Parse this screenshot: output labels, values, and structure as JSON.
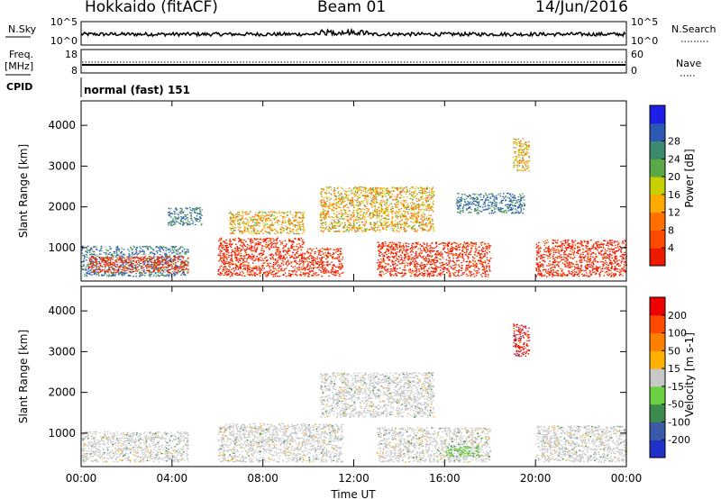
{
  "header": {
    "station": "Hokkaido (fitACF)",
    "beam": "Beam 01",
    "date": "14/Jun/2016"
  },
  "top_panels": {
    "nsky_label": "N.Sky",
    "nsky_ticks": [
      "10^5",
      "10^0"
    ],
    "nsearch_label": "N.Search",
    "nsearch_ticks": [
      "10^5",
      "10^0"
    ],
    "freq_label_1": "Freq.",
    "freq_label_2": "[MHz]",
    "freq_ticks": [
      "18",
      "8"
    ],
    "nave_label": "Nave",
    "nave_ticks": [
      "60",
      "0"
    ],
    "cpid_label": "CPID",
    "cpid_value": "normal (fast) 151"
  },
  "colors": {
    "power": [
      "#1e1ee6",
      "#2d58b4",
      "#3e8a6e",
      "#5ba946",
      "#c8d000",
      "#ffaa00",
      "#ff7000",
      "#ff4a00",
      "#ee1a00"
    ],
    "velocity": [
      "#2030c8",
      "#3b5aa8",
      "#3c8a4c",
      "#6cd040",
      "#c8c8c8",
      "#ffb000",
      "#ff8000",
      "#ff4a00",
      "#ee0000"
    ]
  },
  "chart_data": [
    {
      "type": "heatmap",
      "name": "power",
      "title": "",
      "xlabel": "",
      "ylabel": "Slant Range [km]",
      "y_ticks": [
        "1000",
        "2000",
        "3000",
        "4000"
      ],
      "xlim": [
        0,
        24
      ],
      "ylim": [
        180,
        4600
      ],
      "colorbar": {
        "label": "Power [dB]",
        "ticks": [
          "4",
          "8",
          "12",
          "16",
          "20",
          "24",
          "28"
        ],
        "range": [
          0,
          32
        ]
      },
      "regions": [
        {
          "t": [
            0.0,
            4.7
          ],
          "r": [
            300,
            1050
          ],
          "level": "low"
        },
        {
          "t": [
            0.3,
            4.7
          ],
          "r": [
            400,
            800
          ],
          "level": "strong"
        },
        {
          "t": [
            3.8,
            5.3
          ],
          "r": [
            1550,
            2000
          ],
          "level": "weak"
        },
        {
          "t": [
            6.0,
            9.8
          ],
          "r": [
            300,
            1250
          ],
          "level": "strong"
        },
        {
          "t": [
            6.5,
            9.8
          ],
          "r": [
            1350,
            1900
          ],
          "level": "mid"
        },
        {
          "t": [
            9.8,
            11.5
          ],
          "r": [
            300,
            1000
          ],
          "level": "strong"
        },
        {
          "t": [
            10.5,
            15.5
          ],
          "r": [
            1400,
            2500
          ],
          "level": "mid"
        },
        {
          "t": [
            13.0,
            18.0
          ],
          "r": [
            300,
            1150
          ],
          "level": "strong"
        },
        {
          "t": [
            16.5,
            19.5
          ],
          "r": [
            1850,
            2350
          ],
          "level": "weak"
        },
        {
          "t": [
            19.0,
            19.7
          ],
          "r": [
            2900,
            3700
          ],
          "level": "mid"
        },
        {
          "t": [
            20.0,
            24.0
          ],
          "r": [
            300,
            1200
          ],
          "level": "strong"
        }
      ]
    },
    {
      "type": "heatmap",
      "name": "velocity",
      "title": "",
      "xlabel": "Time UT",
      "ylabel": "Slant Range [km]",
      "x_ticks": [
        "00:00",
        "04:00",
        "08:00",
        "12:00",
        "16:00",
        "20:00",
        "00:00"
      ],
      "y_ticks": [
        "1000",
        "2000",
        "3000",
        "4000"
      ],
      "xlim": [
        0,
        24
      ],
      "ylim": [
        180,
        4600
      ],
      "colorbar": {
        "label": "Velocity [m s-1]",
        "ticks": [
          "200",
          "100",
          "50",
          "15",
          "-15",
          "-50",
          "-100",
          "-200"
        ],
        "range": [
          -250,
          250
        ]
      },
      "regions": [
        {
          "t": [
            0.0,
            4.7
          ],
          "r": [
            300,
            1050
          ],
          "level": "zero"
        },
        {
          "t": [
            6.0,
            11.5
          ],
          "r": [
            300,
            1250
          ],
          "level": "zero"
        },
        {
          "t": [
            10.5,
            15.5
          ],
          "r": [
            1400,
            2500
          ],
          "level": "zero"
        },
        {
          "t": [
            13.0,
            18.0
          ],
          "r": [
            300,
            1150
          ],
          "level": "zero"
        },
        {
          "t": [
            16.0,
            17.5
          ],
          "r": [
            420,
            700
          ],
          "level": "pos"
        },
        {
          "t": [
            19.0,
            19.7
          ],
          "r": [
            2900,
            3700
          ],
          "level": "neg"
        },
        {
          "t": [
            20.0,
            24.0
          ],
          "r": [
            300,
            1200
          ],
          "level": "zero"
        }
      ]
    }
  ]
}
